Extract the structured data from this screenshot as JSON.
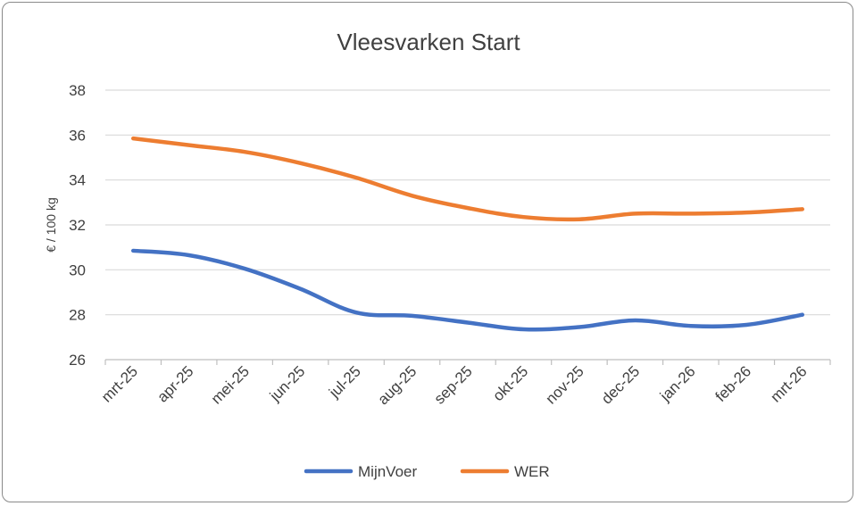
{
  "chart_data": {
    "type": "line",
    "title": "Vleesvarken Start",
    "xlabel": "",
    "ylabel": "€ / 100 kg",
    "ylim": [
      26,
      38
    ],
    "yticks": [
      26,
      28,
      30,
      32,
      34,
      36,
      38
    ],
    "grid": true,
    "legend_position": "bottom",
    "categories": [
      "mrt-25",
      "apr-25",
      "mei-25",
      "jun-25",
      "jul-25",
      "aug-25",
      "sep-25",
      "okt-25",
      "nov-25",
      "dec-25",
      "jan-26",
      "feb-26",
      "mrt-26"
    ],
    "series": [
      {
        "name": "MijnVoer",
        "color": "#4472C4",
        "values": [
          30.85,
          30.65,
          30.05,
          29.15,
          28.1,
          27.95,
          27.65,
          27.35,
          27.45,
          27.75,
          27.5,
          27.55,
          28.0
        ]
      },
      {
        "name": "WER",
        "color": "#ED7D31",
        "values": [
          35.85,
          35.55,
          35.25,
          34.75,
          34.1,
          33.3,
          32.75,
          32.35,
          32.25,
          32.5,
          32.5,
          32.55,
          32.7
        ]
      }
    ]
  }
}
